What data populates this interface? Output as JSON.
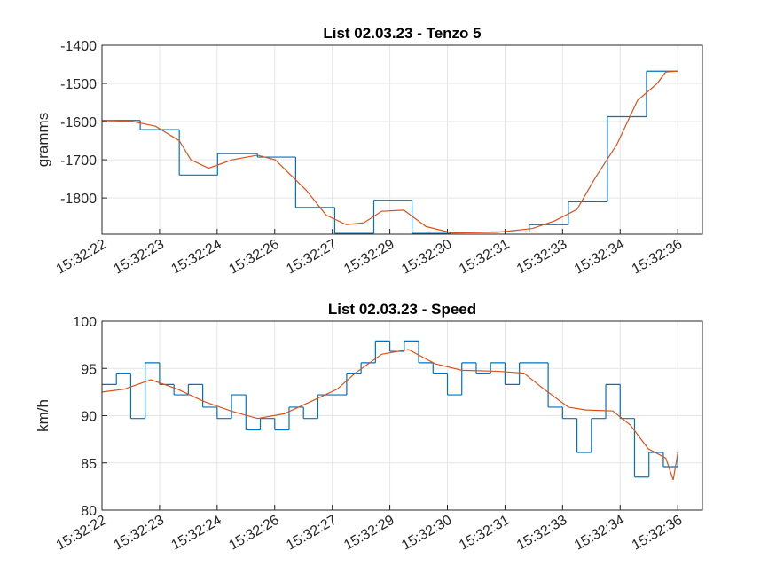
{
  "chart_data": [
    {
      "type": "line",
      "title": "List 02.03.23 - Tenzo 5",
      "y_label": "gramms",
      "xlim": [
        22,
        36.6
      ],
      "ylim": [
        -1895,
        -1400
      ],
      "xticks": [
        {
          "value": 22,
          "label": "15:32:22"
        },
        {
          "value": 23.4,
          "label": "15:32:23"
        },
        {
          "value": 24.8,
          "label": "15:32:24"
        },
        {
          "value": 26.2,
          "label": "15:32:26"
        },
        {
          "value": 27.6,
          "label": "15:32:27"
        },
        {
          "value": 29.0,
          "label": "15:32:29"
        },
        {
          "value": 30.4,
          "label": "15:32:30"
        },
        {
          "value": 31.8,
          "label": "15:32:31"
        },
        {
          "value": 33.2,
          "label": "15:32:33"
        },
        {
          "value": 34.6,
          "label": "15:32:34"
        },
        {
          "value": 36.0,
          "label": "15:32:36"
        }
      ],
      "yticks": [
        -1800,
        -1700,
        -1600,
        -1500,
        -1400
      ],
      "grid": true,
      "series": [
        {
          "color": "#0072bd",
          "step": true,
          "x": [
            22,
            22.93,
            23.88,
            24.81,
            25.78,
            26.71,
            27.66,
            28.61,
            29.54,
            30.49,
            31.44,
            32.39,
            33.34,
            34.29,
            35.24,
            36
          ],
          "values": [
            -1597,
            -1621,
            -1740,
            -1684,
            -1693,
            -1825,
            -1893,
            -1806,
            -1893,
            -1890,
            -1889,
            -1870,
            -1810,
            -1587,
            -1468,
            -1468
          ]
        },
        {
          "color": "#d95319",
          "step": false,
          "x": [
            22,
            22.76,
            23.3,
            23.88,
            24.16,
            24.59,
            25.17,
            25.78,
            26.21,
            26.97,
            27.45,
            27.94,
            28.37,
            28.8,
            29.34,
            29.88,
            30.53,
            31.61,
            32.47,
            33.01,
            33.55,
            33.98,
            34.52,
            35.02,
            35.5,
            35.71,
            36
          ],
          "values": [
            -1597,
            -1600,
            -1612,
            -1650,
            -1700,
            -1722,
            -1700,
            -1688,
            -1700,
            -1780,
            -1845,
            -1870,
            -1865,
            -1835,
            -1832,
            -1875,
            -1892,
            -1890,
            -1880,
            -1860,
            -1830,
            -1750,
            -1660,
            -1545,
            -1500,
            -1470,
            -1468
          ]
        }
      ]
    },
    {
      "type": "line",
      "title": "List 02.03.23 - Speed",
      "y_label": "km/h",
      "xlim": [
        22,
        36.6
      ],
      "ylim": [
        80,
        100
      ],
      "xticks": [
        {
          "value": 22,
          "label": "15:32:22"
        },
        {
          "value": 23.4,
          "label": "15:32:23"
        },
        {
          "value": 24.8,
          "label": "15:32:24"
        },
        {
          "value": 26.2,
          "label": "15:32:26"
        },
        {
          "value": 27.6,
          "label": "15:32:27"
        },
        {
          "value": 29.0,
          "label": "15:32:29"
        },
        {
          "value": 30.4,
          "label": "15:32:30"
        },
        {
          "value": 31.8,
          "label": "15:32:31"
        },
        {
          "value": 33.2,
          "label": "15:32:33"
        },
        {
          "value": 34.6,
          "label": "15:32:34"
        },
        {
          "value": 36.0,
          "label": "15:32:36"
        }
      ],
      "yticks": [
        80,
        85,
        90,
        95,
        100
      ],
      "grid": true,
      "series": [
        {
          "color": "#0072bd",
          "step": true,
          "x": [
            22,
            22.35,
            22.7,
            23.05,
            23.4,
            23.75,
            24.1,
            24.45,
            24.8,
            25.15,
            25.5,
            25.85,
            26.2,
            26.55,
            26.9,
            27.25,
            27.6,
            27.95,
            28.3,
            28.65,
            29.0,
            29.35,
            29.7,
            30.05,
            30.4,
            30.75,
            31.1,
            31.45,
            31.8,
            32.15,
            32.5,
            32.85,
            33.2,
            33.55,
            33.9,
            34.25,
            34.6,
            34.95,
            35.3,
            35.65,
            36
          ],
          "values": [
            93.3,
            94.5,
            89.7,
            95.6,
            93.3,
            92.2,
            93.3,
            90.9,
            89.7,
            92.2,
            88.5,
            89.7,
            88.5,
            90.9,
            89.7,
            92.2,
            92.2,
            94.5,
            95.6,
            97.9,
            96.8,
            97.9,
            95.6,
            94.5,
            92.2,
            95.6,
            94.5,
            95.6,
            93.3,
            95.6,
            95.6,
            90.9,
            89.7,
            86.1,
            89.7,
            93.3,
            89.7,
            83.5,
            86.1,
            84.6,
            86.1
          ]
        },
        {
          "color": "#d95319",
          "step": false,
          "x": [
            22,
            22.54,
            23.19,
            23.84,
            24.48,
            25.13,
            25.78,
            26.43,
            27.08,
            27.72,
            28.16,
            28.8,
            29.45,
            30.1,
            30.75,
            31.61,
            32.26,
            32.69,
            33.34,
            33.77,
            34.42,
            34.85,
            35.28,
            35.71,
            35.89,
            36
          ],
          "values": [
            92.5,
            92.8,
            93.8,
            92.8,
            91.5,
            90.5,
            89.7,
            90.2,
            91.5,
            92.8,
            94.5,
            96.5,
            97,
            95.5,
            94.8,
            94.7,
            94.5,
            93,
            90.9,
            90.6,
            90.5,
            89,
            86.5,
            85.5,
            83.2,
            86
          ]
        }
      ]
    }
  ]
}
